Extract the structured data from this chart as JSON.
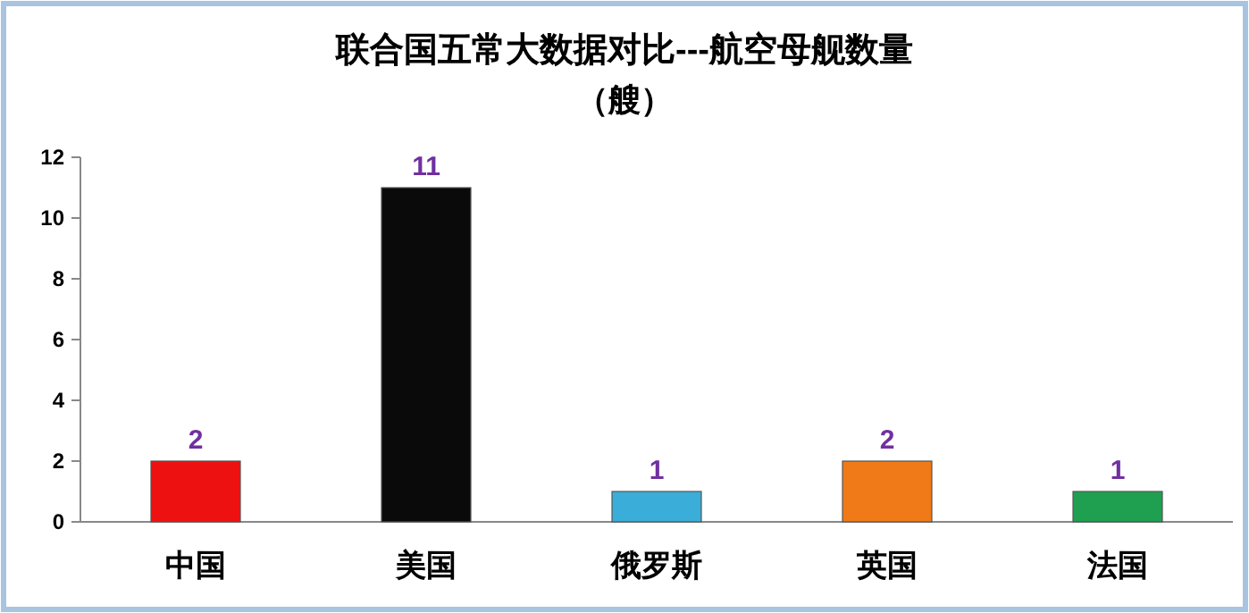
{
  "chart_data": {
    "type": "bar",
    "title": "联合国五常大数据对比---航空母舰数量",
    "subtitle": "（艘）",
    "categories": [
      "中国",
      "美国",
      "俄罗斯",
      "英国",
      "法国"
    ],
    "values": [
      2,
      11,
      1,
      2,
      1
    ],
    "colors": [
      "#ee1111",
      "#0a0a0a",
      "#3aaed8",
      "#f07a18",
      "#1fa050"
    ],
    "ylim": [
      0,
      12
    ],
    "yticks": [
      0,
      2,
      4,
      6,
      8,
      10,
      12
    ],
    "data_labels": true,
    "grid": false
  }
}
